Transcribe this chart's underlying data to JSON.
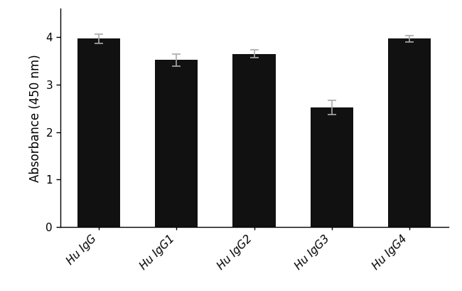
{
  "categories": [
    "Hu IgG",
    "Hu IgG1",
    "Hu IgG2",
    "Hu IgG3",
    "Hu IgG4"
  ],
  "values": [
    3.97,
    3.52,
    3.65,
    2.52,
    3.97
  ],
  "errors": [
    0.1,
    0.13,
    0.08,
    0.15,
    0.07
  ],
  "bar_color": "#111111",
  "error_color": "#aaaaaa",
  "ylabel": "Absorbance (450 nm)",
  "ylim": [
    0,
    4.6
  ],
  "yticks": [
    0,
    1,
    2,
    3,
    4
  ],
  "bar_width": 0.55,
  "background_color": "#ffffff",
  "label_fontsize": 12,
  "tick_fontsize": 11,
  "xlabel_rotation": 45,
  "capsize": 4
}
